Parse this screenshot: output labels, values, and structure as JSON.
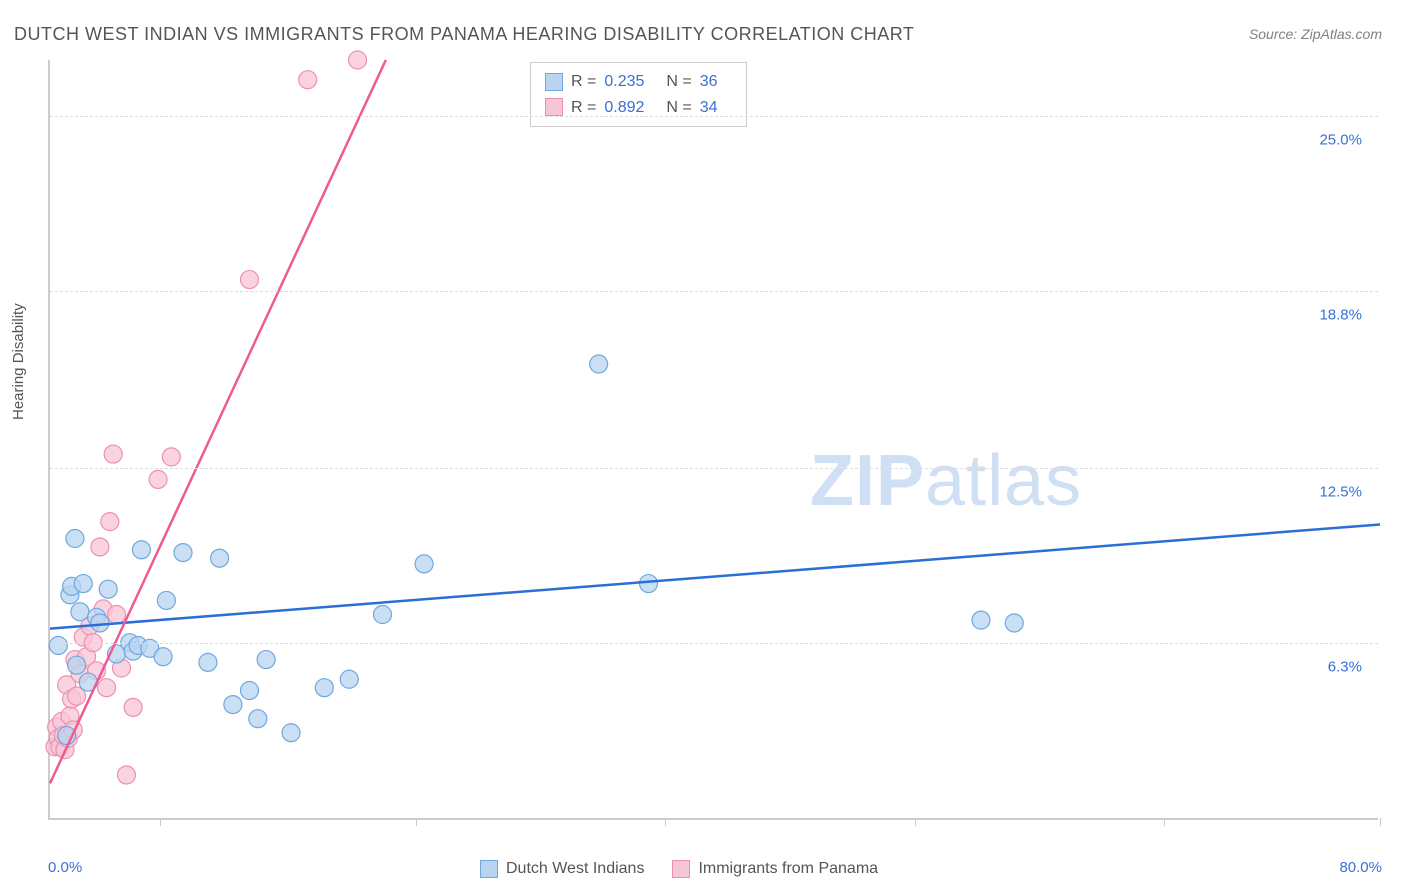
{
  "title": "DUTCH WEST INDIAN VS IMMIGRANTS FROM PANAMA HEARING DISABILITY CORRELATION CHART",
  "source": "Source: ZipAtlas.com",
  "watermark": {
    "part1": "ZIP",
    "part2": "atlas"
  },
  "chart": {
    "type": "scatter",
    "ylabel": "Hearing Disability",
    "xlim": [
      0,
      80
    ],
    "ylim": [
      0,
      27
    ],
    "x_axis_min_label": "0.0%",
    "x_axis_max_label": "80.0%",
    "y_ticks": [
      {
        "v": 6.3,
        "label": "6.3%"
      },
      {
        "v": 12.5,
        "label": "12.5%"
      },
      {
        "v": 18.8,
        "label": "18.8%"
      },
      {
        "v": 25.0,
        "label": "25.0%"
      }
    ],
    "x_tick_positions": [
      6.6,
      22,
      37,
      52,
      67,
      80
    ],
    "grid_color": "#dddddd",
    "axis_color": "#cccccc",
    "background_color": "#ffffff",
    "title_fontsize": 18,
    "label_fontsize": 15,
    "tick_color": "#3a6fd8",
    "series": [
      {
        "name": "Dutch West Indians",
        "color_fill": "#b8d4f0",
        "color_stroke": "#6ea8e0",
        "marker_radius": 9,
        "marker_opacity": 0.75,
        "R": "0.235",
        "N": "36",
        "trend": {
          "x1": 0,
          "y1": 6.8,
          "x2": 80,
          "y2": 10.5,
          "color": "#2a6fd6",
          "width": 2.5
        },
        "points": [
          [
            0.5,
            6.2
          ],
          [
            1.0,
            3.0
          ],
          [
            1.2,
            8.0
          ],
          [
            1.3,
            8.3
          ],
          [
            1.5,
            10.0
          ],
          [
            1.6,
            5.5
          ],
          [
            1.8,
            7.4
          ],
          [
            2.0,
            8.4
          ],
          [
            2.3,
            4.9
          ],
          [
            2.8,
            7.2
          ],
          [
            3.0,
            7.0
          ],
          [
            3.5,
            8.2
          ],
          [
            4.0,
            5.9
          ],
          [
            4.8,
            6.3
          ],
          [
            5.0,
            6.0
          ],
          [
            5.3,
            6.2
          ],
          [
            5.5,
            9.6
          ],
          [
            6.0,
            6.1
          ],
          [
            6.8,
            5.8
          ],
          [
            7.0,
            7.8
          ],
          [
            8.0,
            9.5
          ],
          [
            9.5,
            5.6
          ],
          [
            10.2,
            9.3
          ],
          [
            11.0,
            4.1
          ],
          [
            12.0,
            4.6
          ],
          [
            12.5,
            3.6
          ],
          [
            13.0,
            5.7
          ],
          [
            14.5,
            3.1
          ],
          [
            16.5,
            4.7
          ],
          [
            18.0,
            5.0
          ],
          [
            20.0,
            7.3
          ],
          [
            22.5,
            9.1
          ],
          [
            33.0,
            16.2
          ],
          [
            36.0,
            8.4
          ],
          [
            56.0,
            7.1
          ],
          [
            58.0,
            7.0
          ]
        ]
      },
      {
        "name": "Immigrants from Panama",
        "color_fill": "#f7c6d5",
        "color_stroke": "#ef8fb0",
        "marker_radius": 9,
        "marker_opacity": 0.75,
        "R": "0.892",
        "N": "34",
        "trend": {
          "x1": 0,
          "y1": 1.3,
          "x2": 20.2,
          "y2": 27.0,
          "color": "#ef5a93",
          "width": 2.5
        },
        "points": [
          [
            0.3,
            2.6
          ],
          [
            0.4,
            3.3
          ],
          [
            0.5,
            2.9
          ],
          [
            0.6,
            2.6
          ],
          [
            0.7,
            3.5
          ],
          [
            0.8,
            3.0
          ],
          [
            0.9,
            2.5
          ],
          [
            1.0,
            4.8
          ],
          [
            1.1,
            2.9
          ],
          [
            1.2,
            3.7
          ],
          [
            1.3,
            4.3
          ],
          [
            1.4,
            3.2
          ],
          [
            1.5,
            5.7
          ],
          [
            1.6,
            4.4
          ],
          [
            1.8,
            5.2
          ],
          [
            2.0,
            6.5
          ],
          [
            2.2,
            5.8
          ],
          [
            2.4,
            6.9
          ],
          [
            2.6,
            6.3
          ],
          [
            2.8,
            5.3
          ],
          [
            3.0,
            9.7
          ],
          [
            3.2,
            7.5
          ],
          [
            3.4,
            4.7
          ],
          [
            3.6,
            10.6
          ],
          [
            3.8,
            13.0
          ],
          [
            4.0,
            7.3
          ],
          [
            4.3,
            5.4
          ],
          [
            4.6,
            1.6
          ],
          [
            5.0,
            4.0
          ],
          [
            6.5,
            12.1
          ],
          [
            7.3,
            12.9
          ],
          [
            12.0,
            19.2
          ],
          [
            15.5,
            26.3
          ],
          [
            18.5,
            27.0
          ]
        ]
      }
    ],
    "legend_top": {
      "border_color": "#cccccc",
      "r_label": "R =",
      "n_label": "N ="
    },
    "legend_bottom": {
      "items": [
        "Dutch West Indians",
        "Immigrants from Panama"
      ]
    }
  }
}
